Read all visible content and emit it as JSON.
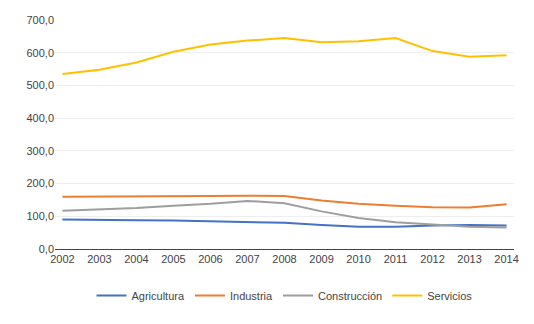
{
  "chart_data": {
    "type": "line",
    "x": [
      2002,
      2003,
      2004,
      2005,
      2006,
      2007,
      2008,
      2009,
      2010,
      2011,
      2012,
      2013,
      2014
    ],
    "series": [
      {
        "name": "Agricultura",
        "color": "#4472C4",
        "values": [
          90,
          90,
          88,
          87,
          85,
          83,
          80,
          73,
          68,
          68,
          72,
          73,
          72
        ]
      },
      {
        "name": "Industria",
        "color": "#ED7D31",
        "values": [
          160,
          160,
          162,
          162,
          162,
          163,
          162,
          148,
          138,
          132,
          128,
          127,
          137
        ]
      },
      {
        "name": "Construcción",
        "color": "#9E9E9E",
        "values": [
          117,
          120,
          125,
          132,
          138,
          147,
          140,
          115,
          95,
          82,
          75,
          68,
          66
        ]
      },
      {
        "name": "Servicios",
        "color": "#FFC000",
        "values": [
          535,
          548,
          570,
          603,
          625,
          637,
          645,
          632,
          635,
          645,
          605,
          588,
          592
        ]
      }
    ],
    "xlim": [
      2001.8,
      2014.2
    ],
    "xticks": [
      2002,
      2003,
      2004,
      2005,
      2006,
      2007,
      2008,
      2009,
      2010,
      2011,
      2012,
      2013,
      2014
    ],
    "ylim": [
      0,
      700
    ],
    "yticks": [
      {
        "value": 0,
        "label": "0,0"
      },
      {
        "value": 100,
        "label": "100,0"
      },
      {
        "value": 200,
        "label": "200,0"
      },
      {
        "value": 300,
        "label": "300,0"
      },
      {
        "value": 400,
        "label": "400,0"
      },
      {
        "value": 500,
        "label": "500,0"
      },
      {
        "value": 600,
        "label": "600,0"
      },
      {
        "value": 700,
        "label": "700,0"
      }
    ],
    "grid": true,
    "legend": "bottom"
  }
}
